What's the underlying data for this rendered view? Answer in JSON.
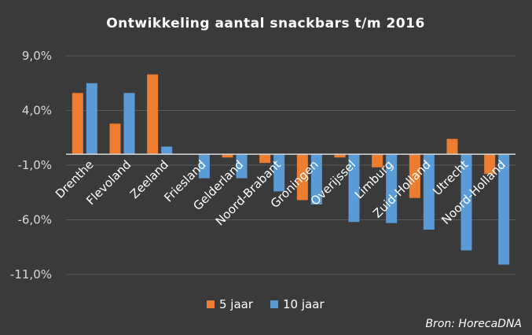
{
  "chart_data": {
    "type": "bar",
    "title": "Ontwikkeling aantal snackbars t/m 2016",
    "categories": [
      "Drenthe",
      "Flevoland",
      "Zeeland",
      "Friesland",
      "Gelderland",
      "Noord-Brabant",
      "Groningen",
      "Overijssel",
      "Limburg",
      "Zuid-Holland",
      "Utrecht",
      "Noord-Holland"
    ],
    "series": [
      {
        "name": "5 jaar",
        "color": "#ed7d31",
        "values": [
          5.6,
          2.8,
          7.3,
          0.0,
          -0.3,
          -0.8,
          -4.2,
          -0.3,
          -1.2,
          -4.0,
          1.4,
          -1.8
        ]
      },
      {
        "name": "10 jaar",
        "color": "#5b9bd5",
        "values": [
          6.5,
          5.6,
          0.7,
          -2.2,
          -2.2,
          -3.4,
          -4.6,
          -6.2,
          -6.3,
          -6.9,
          -8.8,
          -10.1
        ]
      }
    ],
    "yticks": [
      "9,0%",
      "4,0%",
      "-1,0%",
      "-6,0%",
      "-11,0%"
    ],
    "ytick_values": [
      9,
      4,
      -1,
      -6,
      -11
    ],
    "ylim": [
      -11,
      9
    ],
    "grid": true,
    "legend_position": "bottom",
    "source": "Bron: HorecaDNA"
  }
}
